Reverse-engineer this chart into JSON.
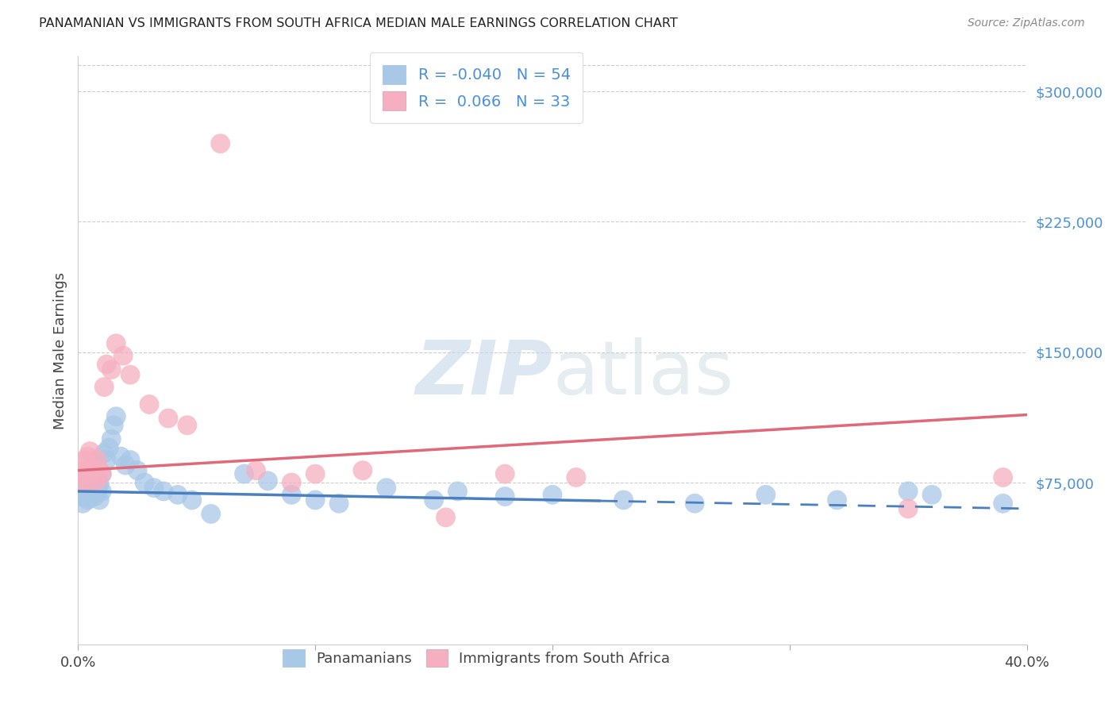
{
  "title": "PANAMANIAN VS IMMIGRANTS FROM SOUTH AFRICA MEDIAN MALE EARNINGS CORRELATION CHART",
  "source": "Source: ZipAtlas.com",
  "ylabel": "Median Male Earnings",
  "x_min": 0.0,
  "x_max": 0.4,
  "y_min": -18000,
  "y_max": 320000,
  "y_ticks": [
    75000,
    150000,
    225000,
    300000
  ],
  "blue_R": -0.04,
  "blue_N": 54,
  "pink_R": 0.066,
  "pink_N": 33,
  "blue_fill_color": "#a8c8e8",
  "pink_fill_color": "#f5afc0",
  "blue_line_color": "#4a7fc0",
  "pink_line_color": "#e06878",
  "tick_label_color": "#4a90d9",
  "title_color": "#222222",
  "source_color": "#888888",
  "grid_color": "#cccccc",
  "blue_line_intercept": 70000,
  "blue_line_slope": -25000,
  "pink_line_intercept": 82000,
  "pink_line_slope": 80000,
  "blue_scatter_x": [
    0.001,
    0.002,
    0.002,
    0.003,
    0.003,
    0.004,
    0.004,
    0.005,
    0.005,
    0.005,
    0.006,
    0.006,
    0.006,
    0.007,
    0.007,
    0.008,
    0.008,
    0.009,
    0.009,
    0.01,
    0.01,
    0.011,
    0.012,
    0.013,
    0.014,
    0.015,
    0.016,
    0.018,
    0.02,
    0.022,
    0.025,
    0.028,
    0.032,
    0.036,
    0.042,
    0.048,
    0.056,
    0.07,
    0.08,
    0.09,
    0.1,
    0.11,
    0.13,
    0.15,
    0.16,
    0.18,
    0.2,
    0.23,
    0.26,
    0.29,
    0.32,
    0.35,
    0.36,
    0.39
  ],
  "blue_scatter_y": [
    67000,
    63000,
    70000,
    68000,
    72000,
    65000,
    75000,
    70000,
    66000,
    73000,
    68000,
    74000,
    71000,
    67000,
    76000,
    72000,
    69000,
    65000,
    74000,
    70000,
    80000,
    92000,
    88000,
    95000,
    100000,
    108000,
    113000,
    90000,
    85000,
    88000,
    82000,
    75000,
    72000,
    70000,
    68000,
    65000,
    57000,
    80000,
    76000,
    68000,
    65000,
    63000,
    72000,
    65000,
    70000,
    67000,
    68000,
    65000,
    63000,
    68000,
    65000,
    70000,
    68000,
    63000
  ],
  "pink_scatter_x": [
    0.001,
    0.002,
    0.003,
    0.003,
    0.004,
    0.004,
    0.005,
    0.005,
    0.006,
    0.007,
    0.008,
    0.008,
    0.009,
    0.01,
    0.011,
    0.012,
    0.014,
    0.016,
    0.019,
    0.022,
    0.03,
    0.038,
    0.046,
    0.06,
    0.075,
    0.09,
    0.1,
    0.12,
    0.155,
    0.18,
    0.21,
    0.35,
    0.39
  ],
  "pink_scatter_y": [
    75000,
    82000,
    80000,
    88000,
    75000,
    90000,
    78000,
    93000,
    85000,
    83000,
    76000,
    88000,
    82000,
    80000,
    130000,
    143000,
    140000,
    155000,
    148000,
    137000,
    120000,
    112000,
    108000,
    270000,
    82000,
    75000,
    80000,
    82000,
    55000,
    80000,
    78000,
    60000,
    78000
  ],
  "legend_labels": [
    "Panamanians",
    "Immigrants from South Africa"
  ],
  "bg_color": "#ffffff"
}
